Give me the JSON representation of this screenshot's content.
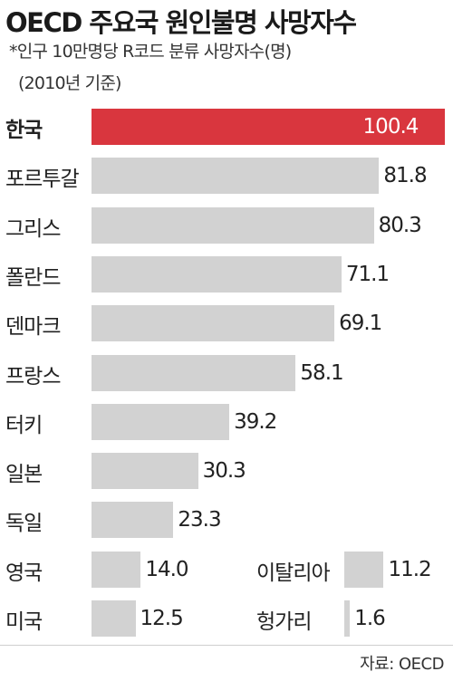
{
  "chart_data": {
    "type": "bar",
    "orientation": "horizontal",
    "title": "OECD 주요국 원인불명 사망자수",
    "subtitle": "*인구 10만명당 R코드 분류 사망자수(명)",
    "subtitle2": "(2010년 기준)",
    "categories": [
      "한국",
      "포르투갈",
      "그리스",
      "폴란드",
      "덴마크",
      "프랑스",
      "터키",
      "일본",
      "독일",
      "영국",
      "이탈리아",
      "미국",
      "헝가리"
    ],
    "values": [
      100.4,
      81.8,
      80.3,
      71.1,
      69.1,
      58.1,
      39.2,
      30.3,
      23.3,
      14.0,
      11.2,
      12.5,
      1.6
    ],
    "value_labels": [
      "100.4",
      "81.8",
      "80.3",
      "71.1",
      "69.1",
      "58.1",
      "39.2",
      "30.3",
      "23.3",
      "14.0",
      "11.2",
      "12.5",
      "1.6"
    ],
    "highlight": "한국",
    "colors": {
      "highlight": "#d9363e",
      "bar": "#d2d2d2"
    },
    "source": "자료: OECD"
  }
}
